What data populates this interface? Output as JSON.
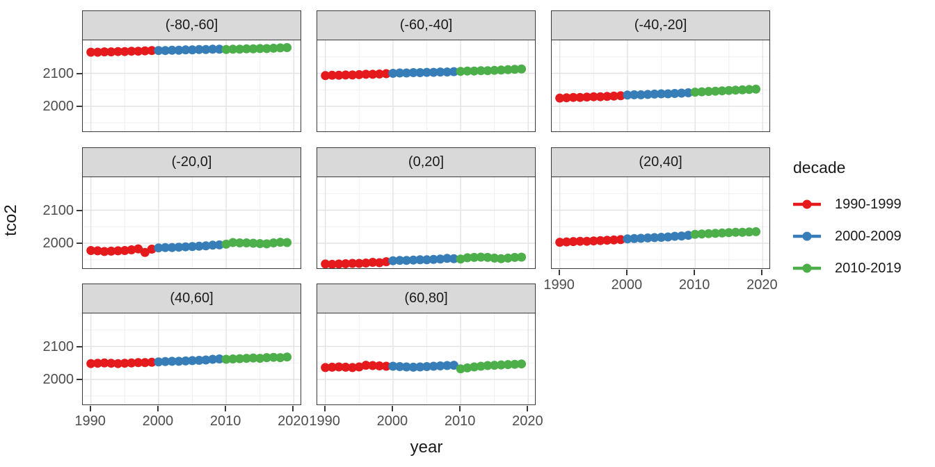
{
  "chart_data": {
    "type": "scatter",
    "title": "",
    "xlabel": "year",
    "ylabel": "tco2",
    "xlim": [
      1988.8,
      2021.2
    ],
    "ylim": [
      1920,
      2200
    ],
    "x_ticks": [
      {
        "value": 1990,
        "label": "1990"
      },
      {
        "value": 2000,
        "label": "2000"
      },
      {
        "value": 2010,
        "label": "2010"
      },
      {
        "value": 2020,
        "label": "2020"
      }
    ],
    "y_ticks": [
      {
        "value": 2000,
        "label": "2000"
      },
      {
        "value": 2100,
        "label": "2100"
      }
    ],
    "x_minor_gridlines": [
      1995,
      2005,
      2015
    ],
    "y_minor_gridlines": [
      1950,
      2050,
      2150
    ],
    "grid": true,
    "colors": {
      "red": "#E41A1C",
      "blue": "#377EB8",
      "green": "#4DAF4A",
      "strip_fill": "#D9D9D9",
      "panel_border": "#383838",
      "grid_major": "#E3E3E3",
      "grid_minor": "#F0F0F0",
      "tick_text": "#4D4D4D"
    },
    "legend": {
      "title": "decade",
      "position": "right",
      "entries": [
        {
          "label": "1990-1999",
          "color": "#E41A1C"
        },
        {
          "label": "2000-2009",
          "color": "#377EB8"
        },
        {
          "label": "2010-2019",
          "color": "#4DAF4A"
        }
      ]
    },
    "facets": [
      {
        "label": "(-80,-60]",
        "series": [
          {
            "name": "1990-1999",
            "color": "#E41A1C",
            "x": [
              1990,
              1991,
              1992,
              1993,
              1994,
              1995,
              1996,
              1997,
              1998,
              1999
            ],
            "y": [
              2164,
              2164,
              2165,
              2165,
              2166,
              2166,
              2167,
              2167,
              2168,
              2169
            ]
          },
          {
            "name": "2000-2009",
            "color": "#377EB8",
            "x": [
              2000,
              2001,
              2002,
              2003,
              2004,
              2005,
              2006,
              2007,
              2008,
              2009
            ],
            "y": [
              2169,
              2169,
              2170,
              2170,
              2171,
              2171,
              2172,
              2172,
              2173,
              2173
            ]
          },
          {
            "name": "2010-2019",
            "color": "#4DAF4A",
            "x": [
              2010,
              2011,
              2012,
              2013,
              2014,
              2015,
              2016,
              2017,
              2018,
              2019
            ],
            "y": [
              2172,
              2173,
              2173,
              2174,
              2174,
              2175,
              2175,
              2176,
              2177,
              2178
            ]
          }
        ]
      },
      {
        "label": "(-60,-40]",
        "series": [
          {
            "name": "1990-1999",
            "color": "#E41A1C",
            "x": [
              1990,
              1991,
              1992,
              1993,
              1994,
              1995,
              1996,
              1997,
              1998,
              1999
            ],
            "y": [
              2093,
              2094,
              2094,
              2095,
              2095,
              2096,
              2097,
              2097,
              2098,
              2099
            ]
          },
          {
            "name": "2000-2009",
            "color": "#377EB8",
            "x": [
              2000,
              2001,
              2002,
              2003,
              2004,
              2005,
              2006,
              2007,
              2008,
              2009
            ],
            "y": [
              2100,
              2101,
              2101,
              2102,
              2102,
              2103,
              2103,
              2104,
              2104,
              2105
            ]
          },
          {
            "name": "2010-2019",
            "color": "#4DAF4A",
            "x": [
              2010,
              2011,
              2012,
              2013,
              2014,
              2015,
              2016,
              2017,
              2018,
              2019
            ],
            "y": [
              2106,
              2107,
              2107,
              2108,
              2108,
              2109,
              2110,
              2111,
              2112,
              2113
            ]
          }
        ]
      },
      {
        "label": "(-40,-20]",
        "series": [
          {
            "name": "1990-1999",
            "color": "#E41A1C",
            "x": [
              1990,
              1991,
              1992,
              1993,
              1994,
              1995,
              1996,
              1997,
              1998,
              1999
            ],
            "y": [
              2025,
              2026,
              2027,
              2027,
              2028,
              2029,
              2029,
              2030,
              2031,
              2032
            ]
          },
          {
            "name": "2000-2009",
            "color": "#377EB8",
            "x": [
              2000,
              2001,
              2002,
              2003,
              2004,
              2005,
              2006,
              2007,
              2008,
              2009
            ],
            "y": [
              2034,
              2035,
              2035,
              2036,
              2037,
              2038,
              2038,
              2039,
              2040,
              2041
            ]
          },
          {
            "name": "2010-2019",
            "color": "#4DAF4A",
            "x": [
              2010,
              2011,
              2012,
              2013,
              2014,
              2015,
              2016,
              2017,
              2018,
              2019
            ],
            "y": [
              2043,
              2044,
              2045,
              2046,
              2047,
              2048,
              2049,
              2050,
              2051,
              2052
            ]
          }
        ]
      },
      {
        "label": "(-20,0]",
        "series": [
          {
            "name": "1990-1999",
            "color": "#E41A1C",
            "x": [
              1990,
              1991,
              1992,
              1993,
              1994,
              1995,
              1996,
              1997,
              1998,
              1999
            ],
            "y": [
              1978,
              1977,
              1975,
              1976,
              1977,
              1978,
              1980,
              1983,
              1972,
              1982
            ]
          },
          {
            "name": "2000-2009",
            "color": "#377EB8",
            "x": [
              2000,
              2001,
              2002,
              2003,
              2004,
              2005,
              2006,
              2007,
              2008,
              2009
            ],
            "y": [
              1986,
              1987,
              1987,
              1988,
              1989,
              1990,
              1991,
              1992,
              1994,
              1995
            ]
          },
          {
            "name": "2010-2019",
            "color": "#4DAF4A",
            "x": [
              2010,
              2011,
              2012,
              2013,
              2014,
              2015,
              2016,
              2017,
              2018,
              2019
            ],
            "y": [
              1997,
              2002,
              2001,
              2001,
              2000,
              1999,
              1998,
              2001,
              2003,
              2002
            ]
          }
        ]
      },
      {
        "label": "(0,20]",
        "series": [
          {
            "name": "1990-1999",
            "color": "#E41A1C",
            "x": [
              1990,
              1991,
              1992,
              1993,
              1994,
              1995,
              1996,
              1997,
              1998,
              1999
            ],
            "y": [
              1937,
              1936,
              1937,
              1938,
              1939,
              1939,
              1940,
              1942,
              1941,
              1944
            ]
          },
          {
            "name": "2000-2009",
            "color": "#377EB8",
            "x": [
              2000,
              2001,
              2002,
              2003,
              2004,
              2005,
              2006,
              2007,
              2008,
              2009
            ],
            "y": [
              1947,
              1948,
              1948,
              1949,
              1950,
              1950,
              1951,
              1952,
              1954,
              1953
            ]
          },
          {
            "name": "2010-2019",
            "color": "#4DAF4A",
            "x": [
              2010,
              2011,
              2012,
              2013,
              2014,
              2015,
              2016,
              2017,
              2018,
              2019
            ],
            "y": [
              1952,
              1956,
              1957,
              1958,
              1957,
              1955,
              1953,
              1955,
              1957,
              1958
            ]
          }
        ]
      },
      {
        "label": "(20,40]",
        "series": [
          {
            "name": "1990-1999",
            "color": "#E41A1C",
            "x": [
              1990,
              1991,
              1992,
              1993,
              1994,
              1995,
              1996,
              1997,
              1998,
              1999
            ],
            "y": [
              2003,
              2004,
              2005,
              2006,
              2006,
              2007,
              2008,
              2009,
              2010,
              2011
            ]
          },
          {
            "name": "2000-2009",
            "color": "#377EB8",
            "x": [
              2000,
              2001,
              2002,
              2003,
              2004,
              2005,
              2006,
              2007,
              2008,
              2009
            ],
            "y": [
              2013,
              2014,
              2015,
              2016,
              2017,
              2018,
              2019,
              2021,
              2022,
              2024
            ]
          },
          {
            "name": "2010-2019",
            "color": "#4DAF4A",
            "x": [
              2010,
              2011,
              2012,
              2013,
              2014,
              2015,
              2016,
              2017,
              2018,
              2019
            ],
            "y": [
              2027,
              2028,
              2029,
              2030,
              2031,
              2032,
              2033,
              2033,
              2034,
              2035
            ]
          }
        ]
      },
      {
        "label": "(40,60]",
        "series": [
          {
            "name": "1990-1999",
            "color": "#E41A1C",
            "x": [
              1990,
              1991,
              1992,
              1993,
              1994,
              1995,
              1996,
              1997,
              1998,
              1999
            ],
            "y": [
              2048,
              2049,
              2050,
              2049,
              2048,
              2049,
              2050,
              2051,
              2051,
              2052
            ]
          },
          {
            "name": "2000-2009",
            "color": "#377EB8",
            "x": [
              2000,
              2001,
              2002,
              2003,
              2004,
              2005,
              2006,
              2007,
              2008,
              2009
            ],
            "y": [
              2053,
              2054,
              2055,
              2055,
              2056,
              2057,
              2058,
              2059,
              2061,
              2062
            ]
          },
          {
            "name": "2010-2019",
            "color": "#4DAF4A",
            "x": [
              2010,
              2011,
              2012,
              2013,
              2014,
              2015,
              2016,
              2017,
              2018,
              2019
            ],
            "y": [
              2061,
              2062,
              2063,
              2064,
              2065,
              2064,
              2066,
              2067,
              2066,
              2068
            ]
          }
        ]
      },
      {
        "label": "(60,80]",
        "series": [
          {
            "name": "1990-1999",
            "color": "#E41A1C",
            "x": [
              1990,
              1991,
              1992,
              1993,
              1994,
              1995,
              1996,
              1997,
              1998,
              1999
            ],
            "y": [
              2036,
              2037,
              2038,
              2037,
              2036,
              2038,
              2043,
              2042,
              2041,
              2040
            ]
          },
          {
            "name": "2000-2009",
            "color": "#377EB8",
            "x": [
              2000,
              2001,
              2002,
              2003,
              2004,
              2005,
              2006,
              2007,
              2008,
              2009
            ],
            "y": [
              2040,
              2039,
              2038,
              2037,
              2038,
              2039,
              2040,
              2041,
              2042,
              2043
            ]
          },
          {
            "name": "2010-2019",
            "color": "#4DAF4A",
            "x": [
              2010,
              2011,
              2012,
              2013,
              2014,
              2015,
              2016,
              2017,
              2018,
              2019
            ],
            "y": [
              2032,
              2035,
              2038,
              2040,
              2042,
              2043,
              2044,
              2045,
              2046,
              2047
            ]
          }
        ]
      }
    ]
  }
}
